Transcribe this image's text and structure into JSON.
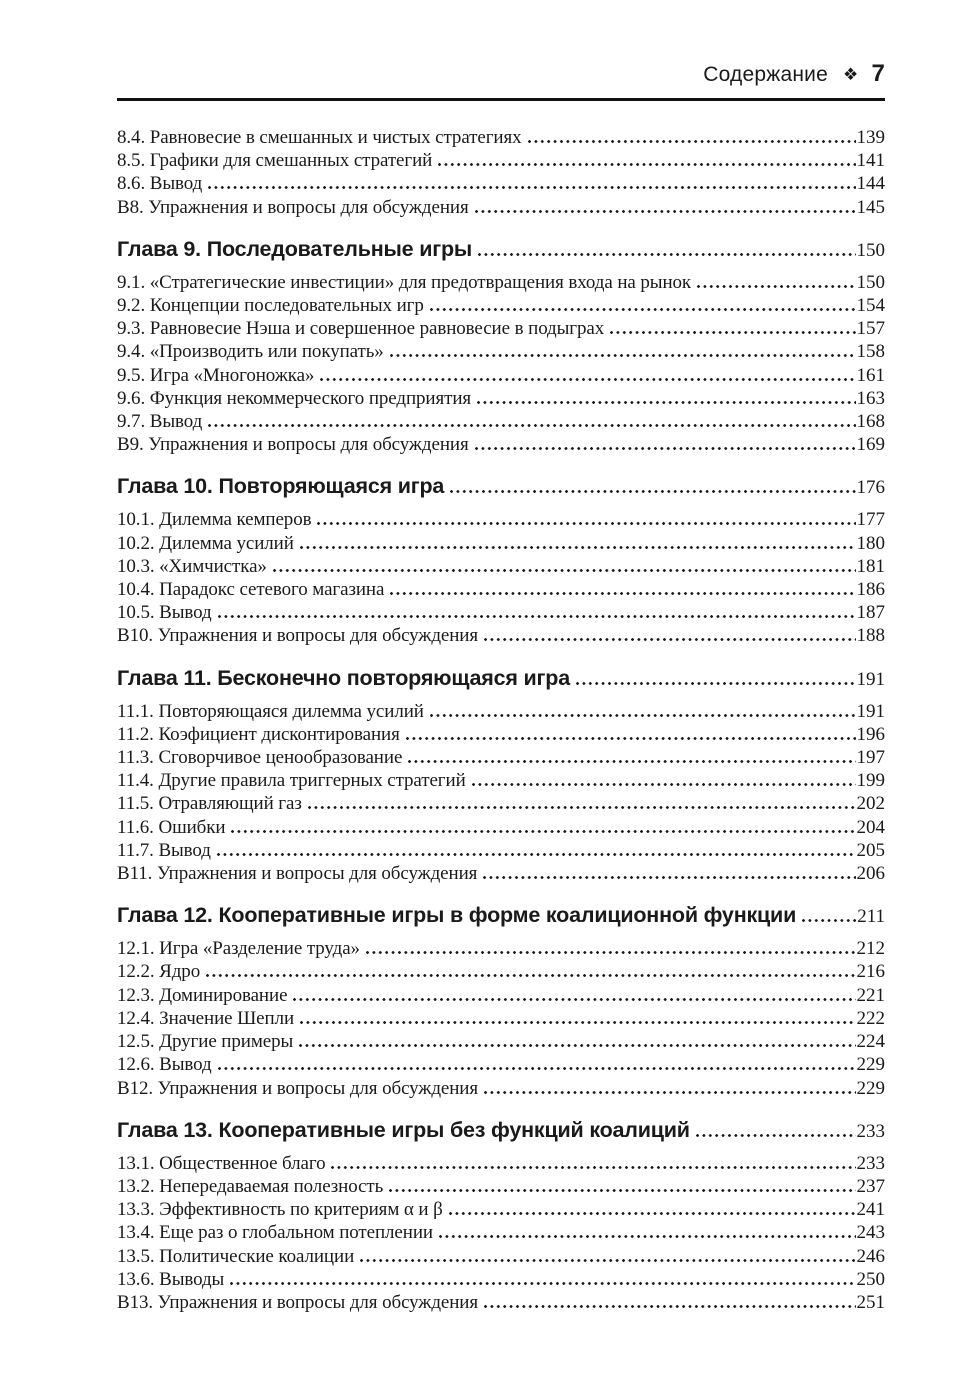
{
  "ink_color": "#1a1a1a",
  "header": {
    "running_title": "Содержание",
    "ornament": "❖",
    "page_folio": "7"
  },
  "sections": [
    {
      "heading": null,
      "entries": [
        {
          "label": "8.4. Равновесие в смешанных и чистых стратегиях",
          "page": "139"
        },
        {
          "label": "8.5. Графики для смешанных стратегий",
          "page": "141"
        },
        {
          "label": "8.6. Вывод",
          "page": "144"
        },
        {
          "label": "В8. Упражнения и вопросы для обсуждения",
          "page": "145"
        }
      ]
    },
    {
      "heading": {
        "label": "Глава 9. Последовательные игры",
        "page": "150"
      },
      "entries": [
        {
          "label": "9.1. «Стратегические инвестиции» для предотвращения входа на рынок",
          "page": "150"
        },
        {
          "label": "9.2. Концепции последовательных игр",
          "page": "154"
        },
        {
          "label": "9.3. Равновесие Нэша и совершенное равновесие в подыграх",
          "page": "157"
        },
        {
          "label": "9.4. «Производить или покупать»",
          "page": "158"
        },
        {
          "label": "9.5. Игра «Многоножка»",
          "page": "161"
        },
        {
          "label": "9.6. Функция некоммерческого предприятия",
          "page": "163"
        },
        {
          "label": "9.7. Вывод",
          "page": "168"
        },
        {
          "label": "В9. Упражнения и вопросы для обсуждения",
          "page": "169"
        }
      ]
    },
    {
      "heading": {
        "label": "Глава 10. Повторяющаяся игра",
        "page": "176"
      },
      "entries": [
        {
          "label": "10.1. Дилемма кемперов",
          "page": "177"
        },
        {
          "label": "10.2. Дилемма усилий",
          "page": "180"
        },
        {
          "label": "10.3. «Химчистка»",
          "page": "181"
        },
        {
          "label": "10.4. Парадокс сетевого магазина",
          "page": "186"
        },
        {
          "label": "10.5. Вывод",
          "page": "187"
        },
        {
          "label": "В10. Упражнения и вопросы для обсуждения",
          "page": "188"
        }
      ]
    },
    {
      "heading": {
        "label": "Глава 11. Бесконечно повторяющаяся игра",
        "page": "191"
      },
      "entries": [
        {
          "label": "11.1. Повторяющаяся дилемма усилий",
          "page": "191"
        },
        {
          "label": "11.2. Коэфициент дисконтирования",
          "page": "196"
        },
        {
          "label": "11.3. Сговорчивое ценообразование",
          "page": "197"
        },
        {
          "label": "11.4. Другие правила триггерных стратегий",
          "page": "199"
        },
        {
          "label": "11.5. Отравляющий газ",
          "page": "202"
        },
        {
          "label": "11.6. Ошибки",
          "page": "204"
        },
        {
          "label": "11.7. Вывод",
          "page": "205"
        },
        {
          "label": "В11. Упражнения и вопросы для обсуждения",
          "page": "206"
        }
      ]
    },
    {
      "heading": {
        "label": "Глава 12. Кооперативные игры в форме коалиционной функции",
        "page": "211"
      },
      "entries": [
        {
          "label": "12.1. Игра «Разделение труда»",
          "page": "212"
        },
        {
          "label": "12.2. Ядро",
          "page": "216"
        },
        {
          "label": "12.3. Доминирование",
          "page": "221"
        },
        {
          "label": "12.4. Значение Шепли",
          "page": "222"
        },
        {
          "label": "12.5. Другие примеры",
          "page": "224"
        },
        {
          "label": "12.6. Вывод",
          "page": "229"
        },
        {
          "label": "В12. Упражнения и вопросы для обсуждения",
          "page": "229"
        }
      ]
    },
    {
      "heading": {
        "label": "Глава 13. Кооперативные игры без функций коалиций",
        "page": "233"
      },
      "entries": [
        {
          "label": "13.1. Общественное благо",
          "page": "233"
        },
        {
          "label": "13.2. Непередаваемая полезность",
          "page": "237"
        },
        {
          "label": "13.3. Эффективность по критериям α и β",
          "page": "241"
        },
        {
          "label": "13.4. Еще раз о глобальном потеплении",
          "page": "243"
        },
        {
          "label": "13.5. Политические коалиции",
          "page": "246"
        },
        {
          "label": "13.6. Выводы",
          "page": "250"
        },
        {
          "label": "В13. Упражнения и вопросы для обсуждения",
          "page": "251"
        }
      ]
    }
  ]
}
